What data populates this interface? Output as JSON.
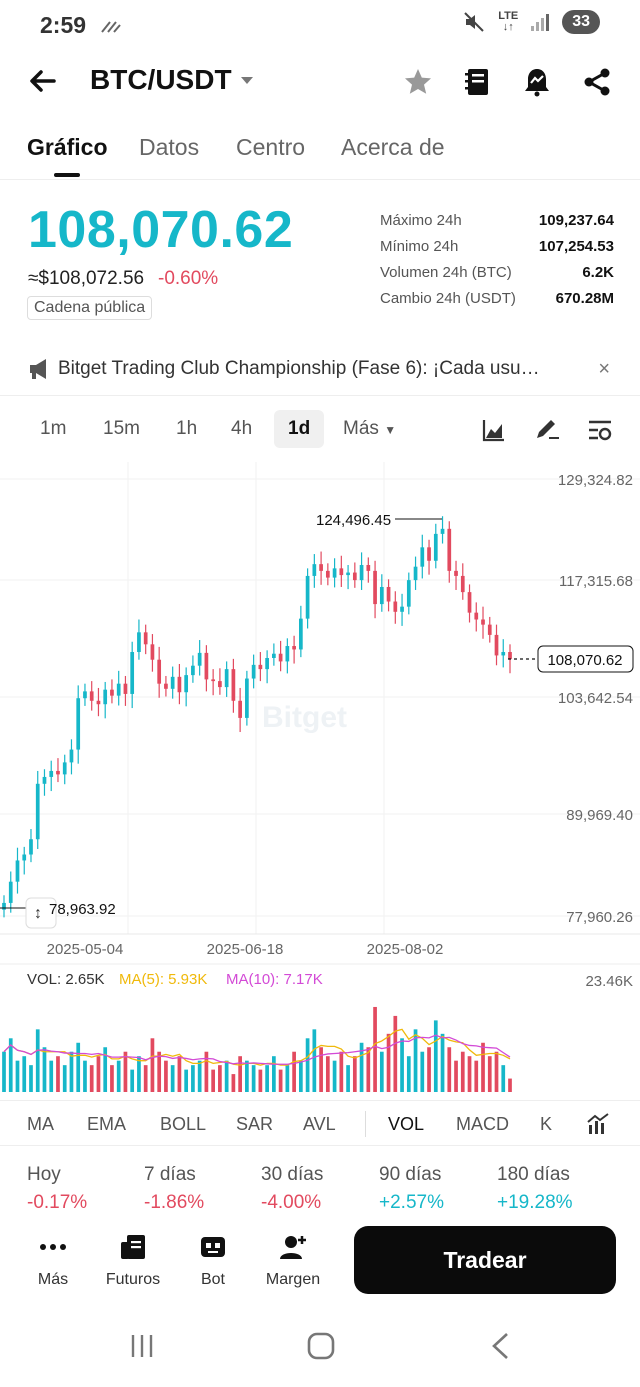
{
  "status": {
    "time": "2:59",
    "battery": "33",
    "network": "LTE"
  },
  "header": {
    "pair": "BTC/USDT"
  },
  "tabs": [
    {
      "label": "Gráfico"
    },
    {
      "label": "Datos"
    },
    {
      "label": "Centro"
    },
    {
      "label": "Acerca de"
    }
  ],
  "price": {
    "last": "108,070.62",
    "usd": "≈$108,072.56",
    "change": "-0.60%",
    "badge": "Cadena pública"
  },
  "stats": [
    {
      "label": "Máximo 24h",
      "value": "109,237.64"
    },
    {
      "label": "Mínimo 24h",
      "value": "107,254.53"
    },
    {
      "label": "Volumen 24h (BTC)",
      "value": "6.2K"
    },
    {
      "label": "Cambio 24h (USDT)",
      "value": "670.28M"
    }
  ],
  "banner": {
    "text": "Bitget Trading Club Championship (Fase 6): ¡Cada usu…",
    "close": "×"
  },
  "intervals": [
    "1m",
    "15m",
    "1h",
    "4h",
    "1d",
    "Más"
  ],
  "active_interval": "1d",
  "chart_data": {
    "type": "candlestick",
    "y_ticks": [
      "129,324.82",
      "117,315.68",
      "103,642.54",
      "89,969.40",
      "77,960.26"
    ],
    "x_ticks": [
      "2025-05-04",
      "2025-06-18",
      "2025-08-02"
    ],
    "ylim": [
      77960.26,
      129324.82
    ],
    "annotations": {
      "high": "124,496.45",
      "low": "78,963.92",
      "last": "108,070.62"
    },
    "watermark": "Bitget",
    "close_series": [
      79500,
      82000,
      84500,
      85200,
      87000,
      93500,
      94300,
      95000,
      94600,
      96000,
      97500,
      103500,
      104300,
      103200,
      102800,
      104500,
      103800,
      105200,
      104000,
      108900,
      111200,
      109800,
      108000,
      105200,
      104600,
      106000,
      104200,
      106200,
      107300,
      108800,
      105700,
      105500,
      104800,
      106900,
      103200,
      101200,
      105800,
      107400,
      106900,
      108200,
      108700,
      107800,
      109600,
      109200,
      112800,
      117800,
      119200,
      118400,
      117600,
      118700,
      117900,
      118200,
      117300,
      119100,
      118400,
      114500,
      116500,
      114800,
      113600,
      114200,
      117300,
      118900,
      121200,
      119600,
      122800,
      123400,
      118400,
      117800,
      115900,
      113500,
      112700,
      112100,
      110900,
      108500,
      108900,
      108070
    ],
    "volume": {
      "label_vol": "VOL: 2.65K",
      "label_ma5": "MA(5): 5.93K",
      "label_ma10": "MA(10): 7.17K",
      "max_label": "23.46K",
      "values": [
        9,
        12,
        7,
        8,
        6,
        14,
        10,
        7,
        8,
        6,
        9,
        11,
        7,
        6,
        8,
        10,
        6,
        7,
        9,
        5,
        8,
        6,
        12,
        9,
        7,
        6,
        8,
        5,
        6,
        7,
        9,
        5,
        6,
        7,
        4,
        8,
        7,
        6,
        5,
        6,
        8,
        5,
        6,
        9,
        7,
        12,
        14,
        10,
        8,
        7,
        9,
        6,
        8,
        11,
        10,
        19,
        9,
        13,
        17,
        12,
        8,
        14,
        9,
        10,
        16,
        13,
        10,
        7,
        9,
        8,
        7,
        11,
        8,
        9,
        6,
        3
      ]
    }
  },
  "indicators": [
    "MA",
    "EMA",
    "BOLL",
    "SAR",
    "AVL",
    "VOL",
    "MACD",
    "K"
  ],
  "active_indicator": "VOL",
  "performance": [
    {
      "label": "Hoy",
      "value": "-0.17%",
      "dir": "neg"
    },
    {
      "label": "7 días",
      "value": "-1.86%",
      "dir": "neg"
    },
    {
      "label": "30 días",
      "value": "-4.00%",
      "dir": "neg"
    },
    {
      "label": "90 días",
      "value": "+2.57%",
      "dir": "pos"
    },
    {
      "label": "180 días",
      "value": "+19.28%",
      "dir": "pos"
    }
  ],
  "bottom": {
    "items": [
      {
        "label": "Más"
      },
      {
        "label": "Futuros"
      },
      {
        "label": "Bot"
      },
      {
        "label": "Margen"
      }
    ],
    "trade": "Tradear"
  },
  "colors": {
    "up": "#16b7c9",
    "down": "#e24a5f",
    "ma5": "#f0b90b",
    "ma10": "#d34ad6"
  }
}
